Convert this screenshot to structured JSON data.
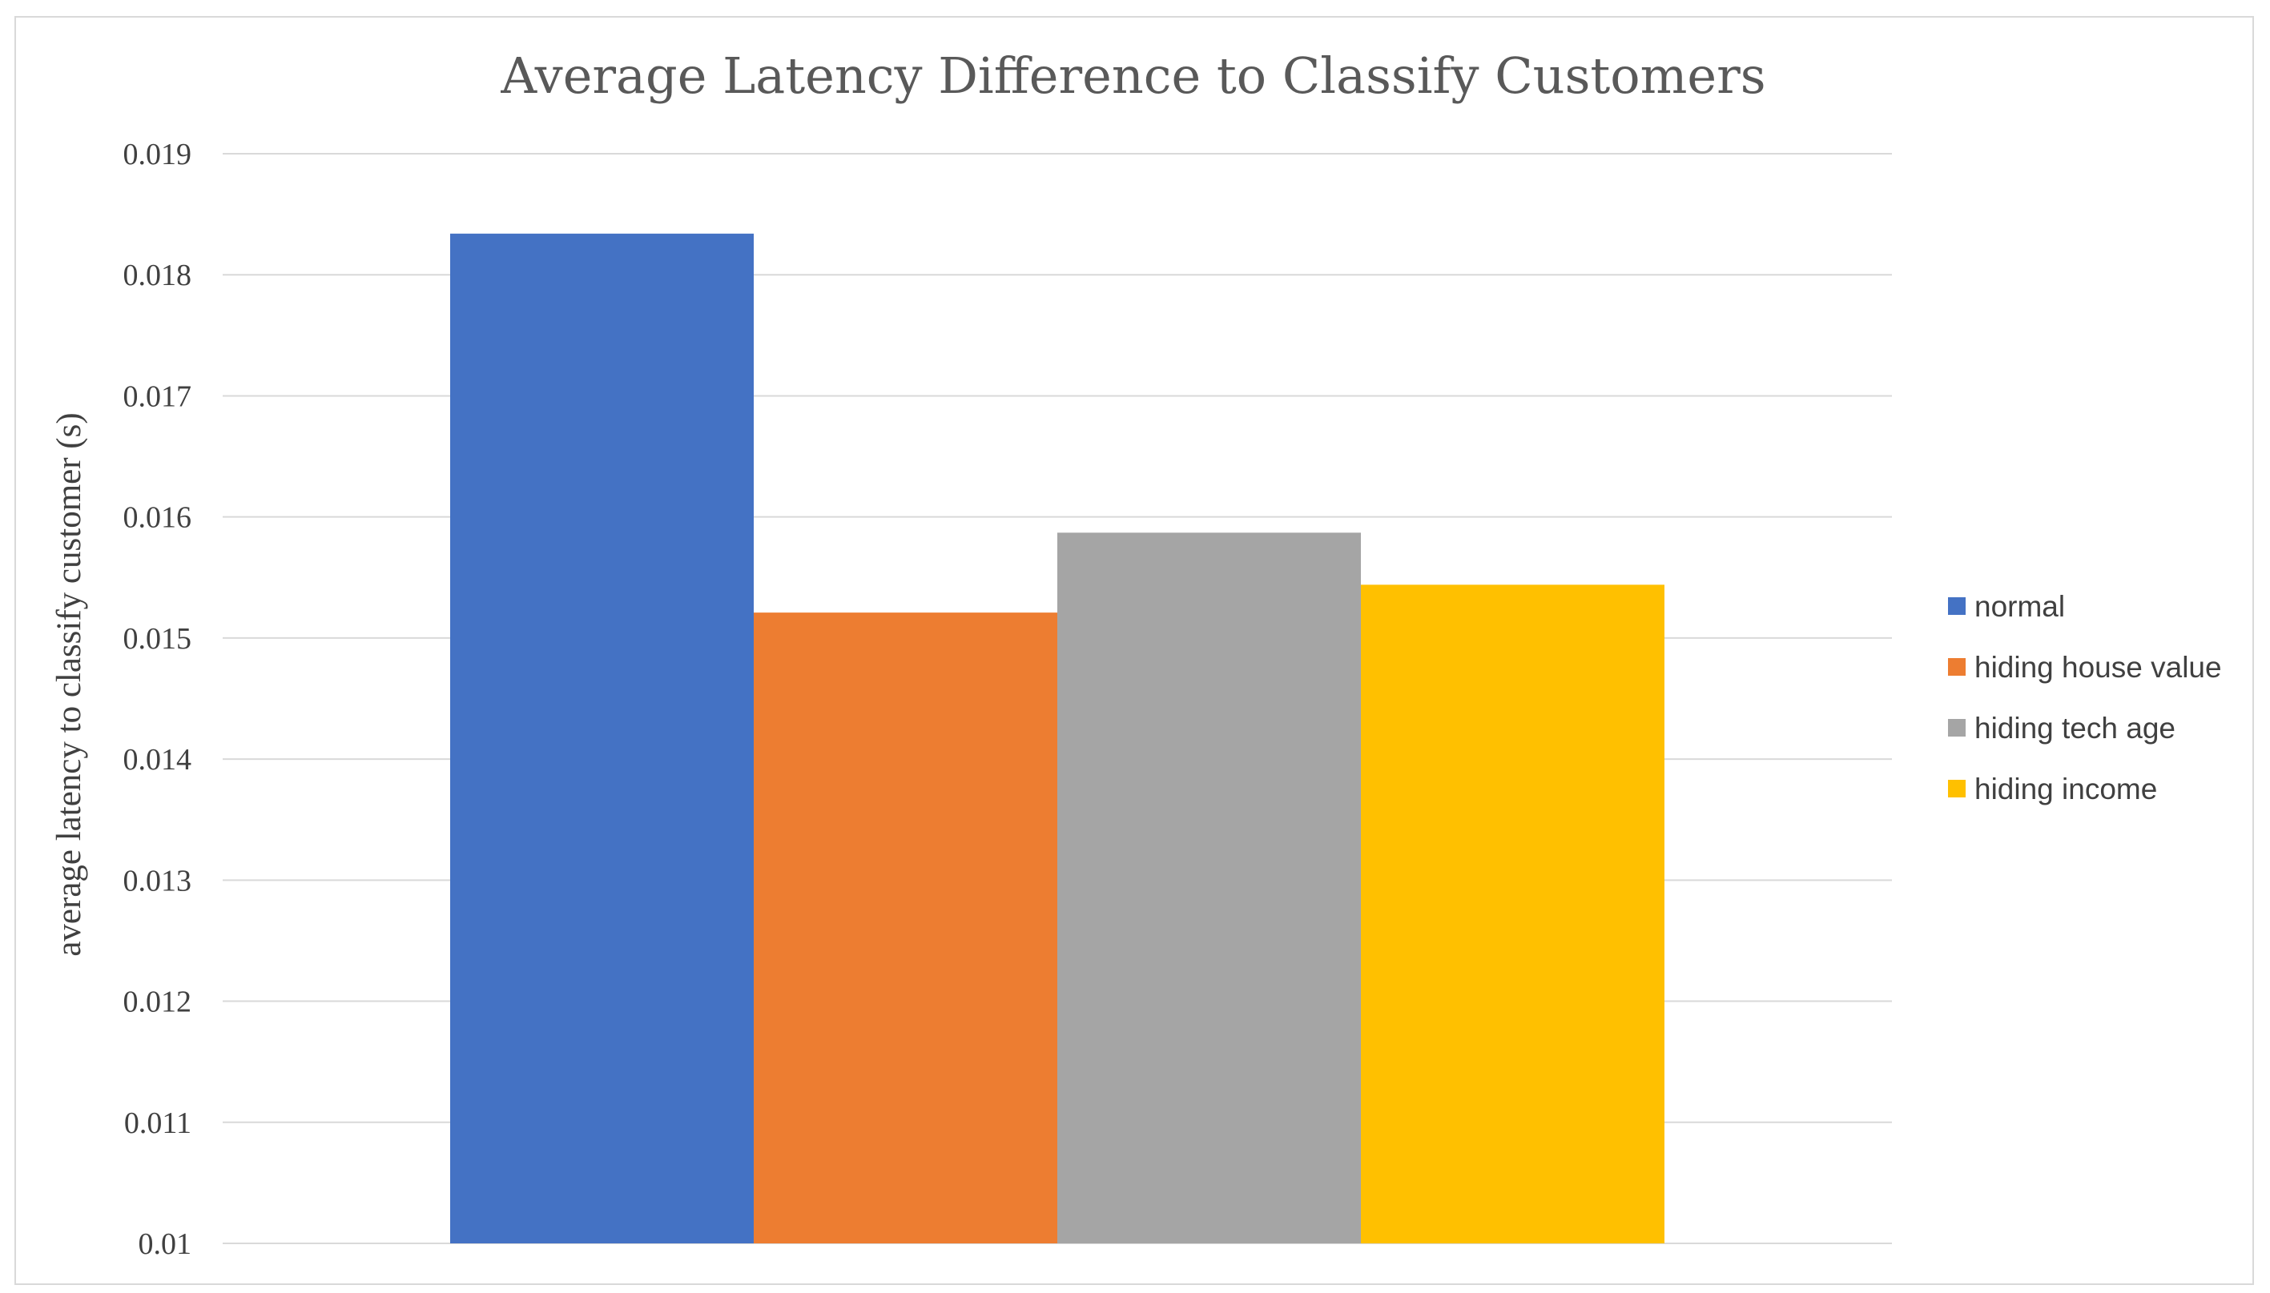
{
  "chart_data": {
    "type": "bar",
    "title": "Average Latency Difference to Classify Customers",
    "ylabel": "average latency to classify customer (s)",
    "xlabel": "",
    "ylim": [
      0.01,
      0.019
    ],
    "yticks": [
      "0.019",
      "0.018",
      "0.017",
      "0.016",
      "0.015",
      "0.014",
      "0.013",
      "0.012",
      "0.011",
      "0.01"
    ],
    "grid": true,
    "legend_position": "right",
    "series": [
      {
        "name": "normal",
        "value": 0.01834,
        "color": "#4472c4"
      },
      {
        "name": "hiding house value",
        "value": 0.01521,
        "color": "#ed7d31"
      },
      {
        "name": "hiding tech age",
        "value": 0.01587,
        "color": "#a5a5a5"
      },
      {
        "name": "hiding income",
        "value": 0.01544,
        "color": "#ffc000"
      }
    ]
  }
}
